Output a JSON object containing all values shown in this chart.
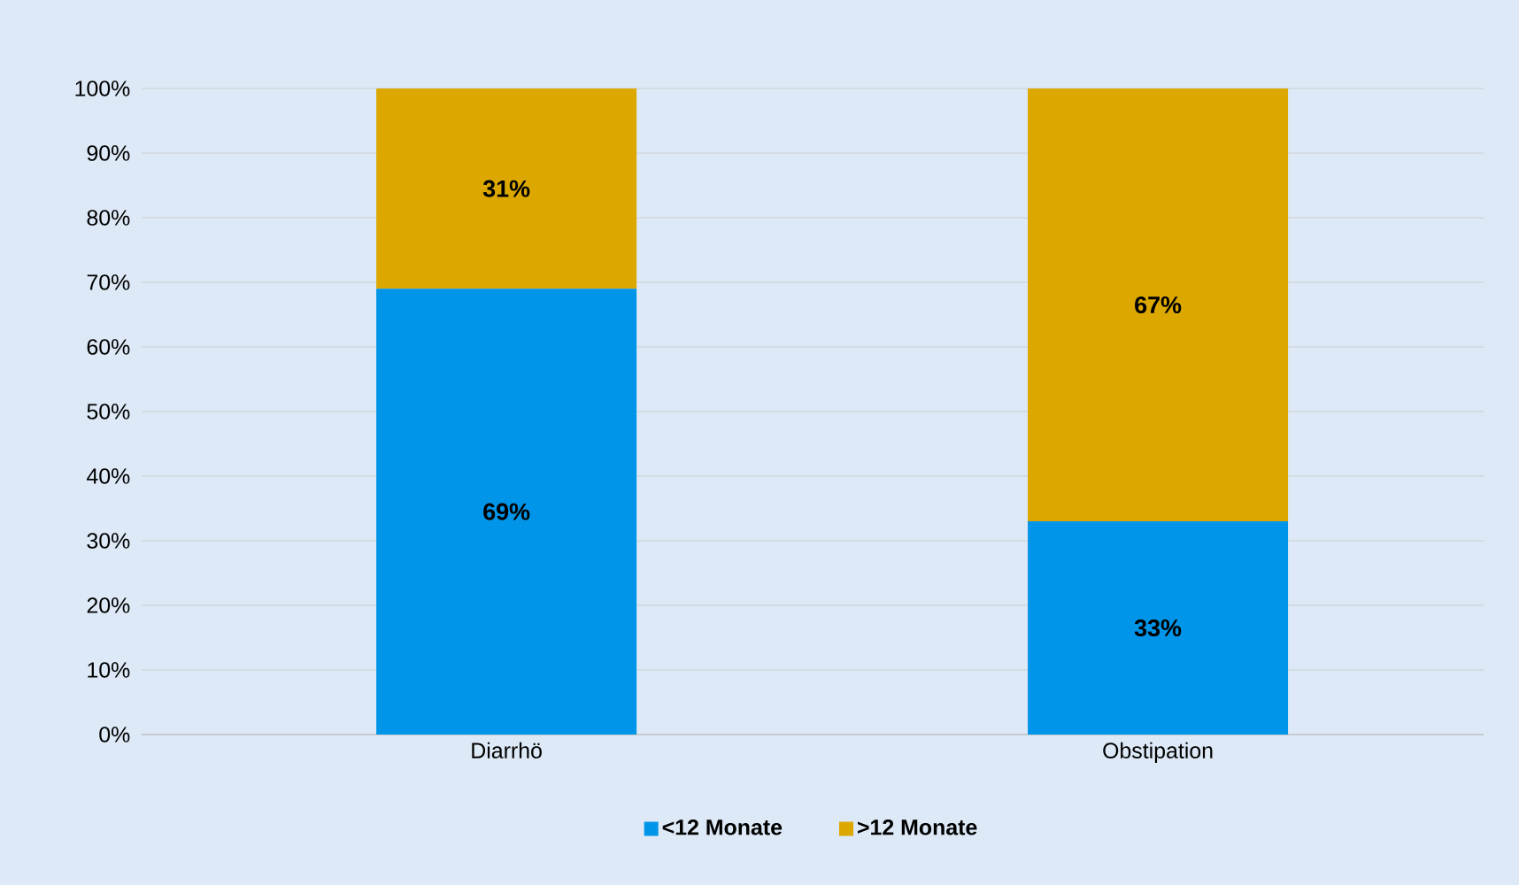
{
  "chart_data": {
    "type": "bar",
    "stacked": true,
    "categories": [
      "Diarrhö",
      "Obstipation"
    ],
    "series": [
      {
        "name": "<12 Monate",
        "color": "#0095e8",
        "values": [
          69,
          33
        ],
        "value_labels": [
          "69%",
          "33%"
        ]
      },
      {
        "name": ">12 Monate",
        "color": "#dca800",
        "values": [
          31,
          67
        ],
        "value_labels": [
          "31%",
          "67%"
        ]
      }
    ],
    "ylim": [
      0,
      100
    ],
    "yticks": [
      {
        "value": 0,
        "label": "0%"
      },
      {
        "value": 10,
        "label": "10%"
      },
      {
        "value": 20,
        "label": "20%"
      },
      {
        "value": 30,
        "label": "30%"
      },
      {
        "value": 40,
        "label": "40%"
      },
      {
        "value": 50,
        "label": "50%"
      },
      {
        "value": 60,
        "label": "60%"
      },
      {
        "value": 70,
        "label": "70%"
      },
      {
        "value": 80,
        "label": "80%"
      },
      {
        "value": 90,
        "label": "90%"
      },
      {
        "value": 100,
        "label": "100%"
      }
    ],
    "grid": "y",
    "legend": "bottom"
  }
}
